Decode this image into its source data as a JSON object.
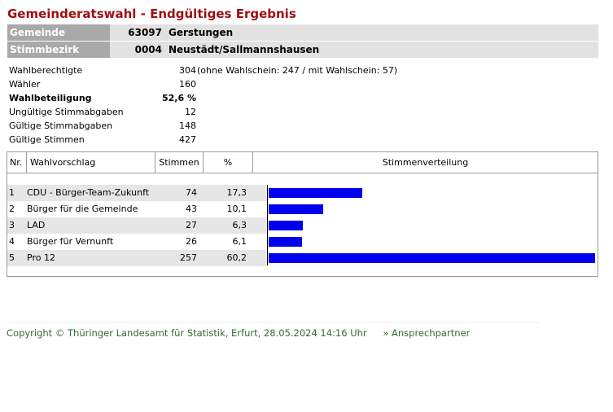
{
  "title": "Gemeinderatswahl - Endgültiges Ergebnis",
  "header": {
    "gemeinde_label": "Gemeinde",
    "gemeinde_nr": "63097",
    "gemeinde_name": "Gerstungen",
    "bezirk_label": "Stimmbezirk",
    "bezirk_nr": "0004",
    "bezirk_name": "Neustädt/Sallmannshausen"
  },
  "stats": [
    {
      "label": "Wahlberechtigte",
      "value": "304",
      "extra": "(ohne Wahlschein: 247 / mit Wahlschein: 57)",
      "bold": false
    },
    {
      "label": "Wähler",
      "value": "160",
      "extra": "",
      "bold": false
    },
    {
      "label": "Wahlbeteiligung",
      "value": "52,6 %",
      "extra": "",
      "bold": true
    },
    {
      "label": "Ungültige Stimmabgaben",
      "value": "12",
      "extra": "",
      "bold": false
    },
    {
      "label": "Gültige Stimmabgaben",
      "value": "148",
      "extra": "",
      "bold": false
    },
    {
      "label": "Gültige Stimmen",
      "value": "427",
      "extra": "",
      "bold": false
    }
  ],
  "table": {
    "headers": {
      "nr": "Nr.",
      "name": "Wahlvorschlag",
      "votes": "Stimmen",
      "pct": "%",
      "dist": "Stimmenverteilung"
    },
    "rows": [
      {
        "nr": "1",
        "name": "CDU - Bürger-Team-Zukunft",
        "votes": "74",
        "pct": "17,3"
      },
      {
        "nr": "2",
        "name": "Bürger für die Gemeinde",
        "votes": "43",
        "pct": "10,1"
      },
      {
        "nr": "3",
        "name": "LAD",
        "votes": "27",
        "pct": "6,3"
      },
      {
        "nr": "4",
        "name": "Bürger für Vernunft",
        "votes": "26",
        "pct": "6,1"
      },
      {
        "nr": "5",
        "name": "Pro 12",
        "votes": "257",
        "pct": "60,2"
      }
    ]
  },
  "chart_data": {
    "type": "bar",
    "categories": [
      "CDU - Bürger-Team-Zukunft",
      "Bürger für die Gemeinde",
      "LAD",
      "Bürger für Vernunft",
      "Pro 12"
    ],
    "values": [
      17.3,
      10.1,
      6.3,
      6.1,
      60.2
    ],
    "title": "Stimmenverteilung",
    "bar_color": "#0000ee"
  },
  "footer": {
    "copyright": "Copyright © Thüringer Landesamt für Statistik, Erfurt, 28.05.2024 14:16 Uhr",
    "contact": "» Ansprechpartner"
  },
  "colors": {
    "title": "#a0100f",
    "header_label_bg": "#a9a9a9",
    "header_value_bg": "#e1e1e1",
    "link": "#2f6e28"
  }
}
